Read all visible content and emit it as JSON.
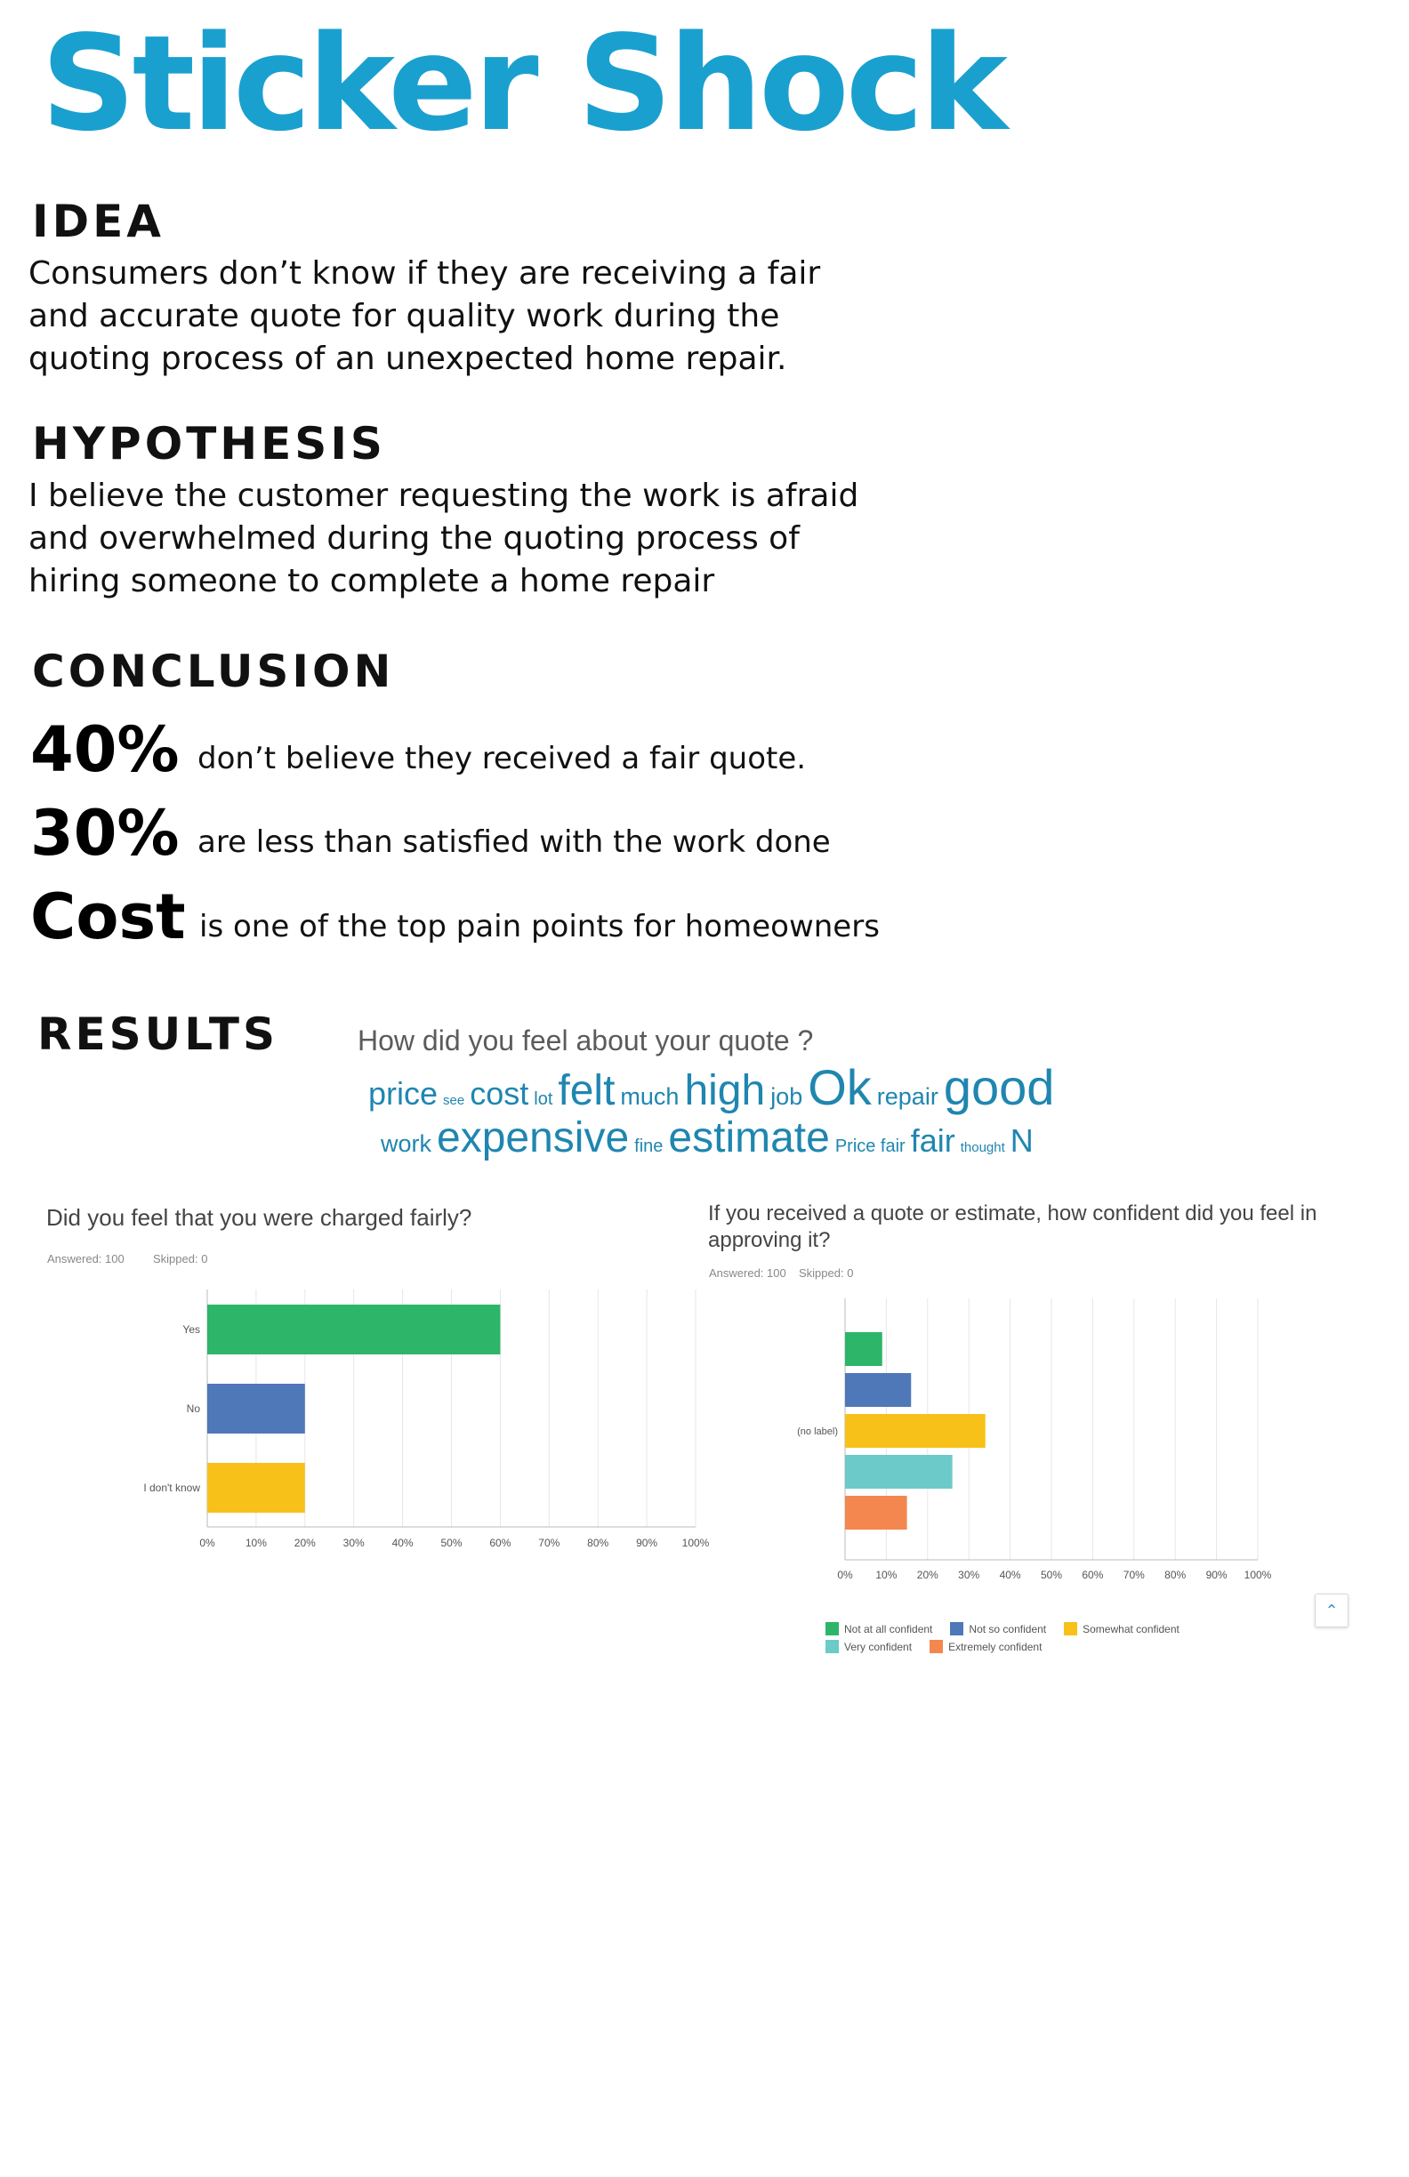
{
  "title": "Sticker Shock",
  "idea": {
    "heading": "IDEA",
    "lines": [
      "Consumers don’t know if they are receiving a fair",
      "and accurate quote for quality work during the",
      "quoting process of an unexpected home repair."
    ]
  },
  "hypothesis": {
    "heading": "HYPOTHESIS",
    "lines": [
      "I believe the customer requesting the work is afraid",
      "and overwhelmed during the quoting process of",
      "hiring someone to complete a home repair"
    ]
  },
  "conclusion": {
    "heading": "CONCLUSION",
    "items": [
      {
        "big": "40%",
        "text": "don’t believe they received a fair quote."
      },
      {
        "big": "30%",
        "text": "are less than satisfied with the work done"
      },
      {
        "big": "Cost",
        "text": "is one of the top pain points for homeowners"
      }
    ]
  },
  "results": {
    "heading": "RESULTS",
    "word_cloud": {
      "question": "How did you feel about your quote ?",
      "line1": [
        {
          "w": "price",
          "size": "l"
        },
        {
          "w": "see",
          "size": "xs"
        },
        {
          "w": "cost",
          "size": "l"
        },
        {
          "w": "lot",
          "size": "s"
        },
        {
          "w": "felt",
          "size": "xl"
        },
        {
          "w": "much",
          "size": "m"
        },
        {
          "w": "high",
          "size": "xl"
        },
        {
          "w": "job",
          "size": "m"
        },
        {
          "w": "Ok",
          "size": "xxl"
        },
        {
          "w": "repair",
          "size": "m"
        },
        {
          "w": "good",
          "size": "xxl"
        }
      ],
      "line2": [
        {
          "w": "work",
          "size": "m"
        },
        {
          "w": "expensive",
          "size": "xl"
        },
        {
          "w": "fine",
          "size": "s"
        },
        {
          "w": "estimate",
          "size": "xl"
        },
        {
          "w": "Price fair",
          "size": "s"
        },
        {
          "w": "fair",
          "size": "l"
        },
        {
          "w": "thought",
          "size": "xs"
        },
        {
          "w": "N",
          "size": "l"
        }
      ]
    }
  },
  "chart_data": [
    {
      "type": "bar",
      "orientation": "horizontal",
      "title": "Did you feel that you were charged fairly?",
      "answered": "Answered: 100",
      "skipped": "Skipped: 0",
      "categories": [
        "Yes",
        "No",
        "I don't know"
      ],
      "values": [
        60,
        20,
        20
      ],
      "colors": [
        "#2db56a",
        "#4f78b8",
        "#f7c11a"
      ],
      "xlim": [
        0,
        100
      ],
      "xticks": [
        "0%",
        "10%",
        "20%",
        "30%",
        "40%",
        "50%",
        "60%",
        "70%",
        "80%",
        "90%",
        "100%"
      ],
      "grid": true
    },
    {
      "type": "bar",
      "orientation": "horizontal",
      "title": "If you received a quote or estimate, how confident did you feel in approving it?",
      "answered": "Answered: 100",
      "skipped": "Skipped: 0",
      "categories": [
        "(no label)"
      ],
      "series": [
        {
          "name": "Not at all confident",
          "values": [
            9
          ],
          "color": "#2db56a"
        },
        {
          "name": "Not so confident",
          "values": [
            16
          ],
          "color": "#4f78b8"
        },
        {
          "name": "Somewhat confident",
          "values": [
            34
          ],
          "color": "#f7c11a"
        },
        {
          "name": "Very confident",
          "values": [
            26
          ],
          "color": "#6ccac9"
        },
        {
          "name": "Extremely confident",
          "values": [
            15
          ],
          "color": "#f4874f"
        }
      ],
      "xlim": [
        0,
        100
      ],
      "xticks": [
        "0%",
        "10%",
        "20%",
        "30%",
        "40%",
        "50%",
        "60%",
        "70%",
        "80%",
        "90%",
        "100%"
      ],
      "grid": true,
      "legend": "bottom"
    }
  ],
  "scroll_up_icon": "chevron-up-icon"
}
